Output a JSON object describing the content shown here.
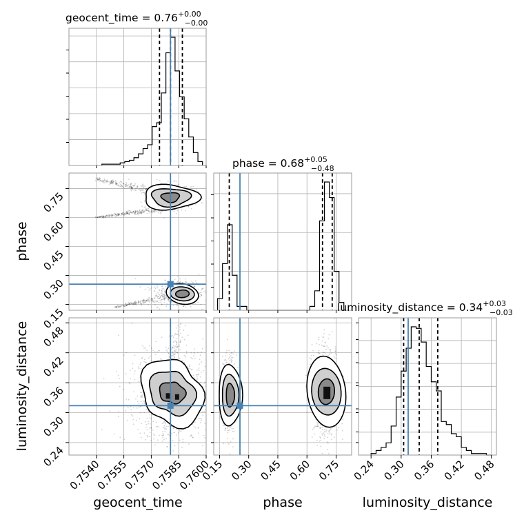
{
  "chart_data": {
    "type": "corner",
    "parameters": [
      "geocent_time",
      "phase",
      "luminosity_distance"
    ],
    "truth_color": "#4682b4",
    "truths": {
      "geocent_time": 0.75805,
      "phase": 0.255,
      "luminosity_distance": 0.314
    },
    "axes": {
      "geocent_time": {
        "range": [
          0.7525,
          0.76
        ],
        "ticks": [
          0.754,
          0.7555,
          0.757,
          0.7585,
          0.76
        ],
        "tick_labels": [
          "0.7540",
          "0.7555",
          "0.7570",
          "0.7585",
          "0.7600"
        ]
      },
      "phase": {
        "range": [
          0.12,
          0.83
        ],
        "ticks": [
          0.15,
          0.3,
          0.45,
          0.6,
          0.75
        ],
        "tick_labels": [
          "0.15",
          "0.30",
          "0.45",
          "0.60",
          "0.75"
        ]
      },
      "luminosity_distance": {
        "range": [
          0.215,
          0.49
        ],
        "ticks": [
          0.24,
          0.3,
          0.36,
          0.42,
          0.48
        ],
        "tick_labels": [
          "0.24",
          "0.30",
          "0.36",
          "0.42",
          "0.48"
        ]
      }
    },
    "titles": [
      {
        "parameter": "geocent_time",
        "text": "geocent_time = 0.76",
        "upper": "+0.00",
        "lower": "−0.00",
        "quantiles": [
          0.75745,
          0.75805,
          0.7587
        ]
      },
      {
        "parameter": "phase",
        "text": "phase = 0.68",
        "upper": "+0.05",
        "lower": "−0.48",
        "quantiles": [
          0.2,
          0.68,
          0.73
        ]
      },
      {
        "parameter": "luminosity_distance",
        "text": "luminosity_distance = 0.34",
        "upper": "+0.03",
        "lower": "−0.03",
        "quantiles": [
          0.305,
          0.336,
          0.373
        ]
      }
    ],
    "histograms": {
      "geocent_time": {
        "bin_edges": [
          0.7543,
          0.75455,
          0.7548,
          0.75505,
          0.7553,
          0.75555,
          0.7558,
          0.75605,
          0.7563,
          0.75655,
          0.7568,
          0.75705,
          0.7573,
          0.75755,
          0.7578,
          0.75805,
          0.7583,
          0.75855,
          0.7588,
          0.75905,
          0.7593,
          0.75955,
          0.7598
        ],
        "counts": [
          1,
          1,
          1,
          1,
          2,
          3,
          4,
          6,
          9,
          13,
          16,
          30,
          33,
          56,
          87,
          99,
          73,
          53,
          36,
          22,
          10,
          3
        ]
      },
      "phase": {
        "bin_edges": [
          0.14,
          0.165,
          0.19,
          0.215,
          0.24,
          0.265,
          0.29,
          0.315,
          0.34,
          0.365,
          0.39,
          0.415,
          0.44,
          0.465,
          0.49,
          0.515,
          0.54,
          0.565,
          0.59,
          0.615,
          0.64,
          0.665,
          0.69,
          0.715,
          0.74,
          0.765,
          0.79
        ],
        "counts": [
          3,
          12,
          22,
          9,
          1,
          1,
          0,
          0,
          0,
          0,
          0,
          0,
          0,
          0,
          0,
          0,
          0,
          0,
          0,
          1,
          5,
          23,
          33,
          29,
          10,
          2
        ]
      },
      "luminosity_distance": {
        "bin_edges": [
          0.24,
          0.25,
          0.26,
          0.27,
          0.28,
          0.29,
          0.3,
          0.31,
          0.32,
          0.33,
          0.34,
          0.35,
          0.36,
          0.37,
          0.38,
          0.39,
          0.4,
          0.41,
          0.42,
          0.43,
          0.44,
          0.45,
          0.46,
          0.47,
          0.48
        ],
        "counts": [
          1,
          3,
          5,
          8,
          19,
          38,
          55,
          70,
          84,
          83,
          74,
          58,
          48,
          42,
          22,
          20,
          14,
          12,
          5,
          3,
          1,
          1,
          1,
          0
        ]
      }
    },
    "contour_panels": [
      {
        "x": "geocent_time",
        "y": "phase"
      },
      {
        "x": "geocent_time",
        "y": "luminosity_distance"
      },
      {
        "x": "phase",
        "y": "luminosity_distance"
      }
    ],
    "axis_labels": {
      "geocent_time": "geocent_time",
      "phase": "phase",
      "luminosity_distance": "luminosity_distance"
    },
    "grid": true,
    "legend": "none"
  }
}
